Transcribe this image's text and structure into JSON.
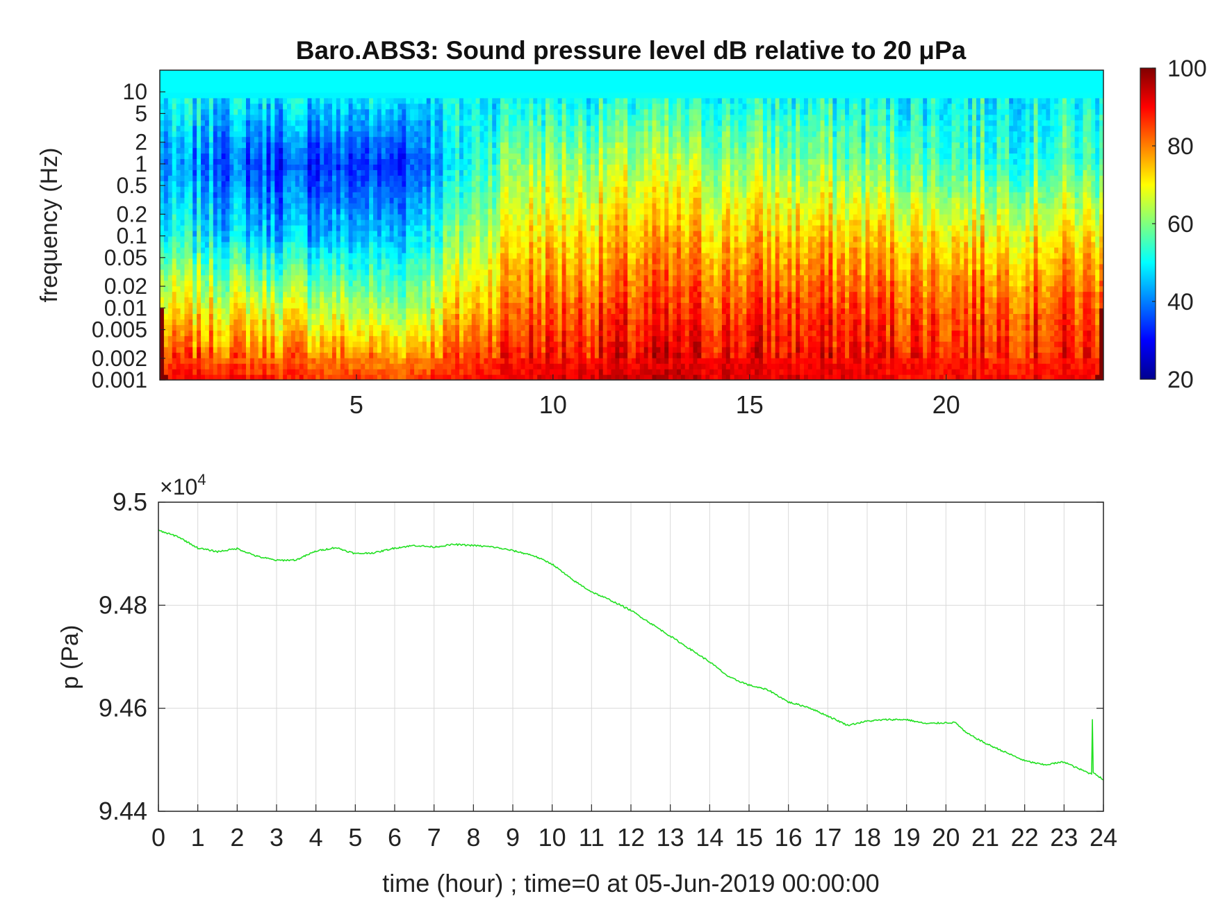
{
  "chart_data": [
    {
      "type": "heatmap",
      "title": "Baro.ABS3: Sound pressure level dB relative to 20 μPa",
      "ylabel": "frequency (Hz)",
      "xlabel": "",
      "xlim": [
        0,
        24
      ],
      "x_ticks": [
        5,
        10,
        15,
        20
      ],
      "y_scale": "log",
      "ylim": [
        0.001,
        20
      ],
      "y_ticks": [
        0.001,
        0.002,
        0.005,
        0.01,
        0.02,
        0.05,
        0.1,
        0.2,
        0.5,
        1,
        2,
        5,
        10
      ],
      "y_tick_labels": [
        "0.001",
        "0.002",
        "0.005",
        "0.01",
        "0.02",
        "0.05",
        "0.1",
        "0.2",
        "0.5",
        "1",
        "2",
        "5",
        "10"
      ],
      "colorbar": {
        "range": [
          20,
          100
        ],
        "ticks": [
          20,
          40,
          60,
          80,
          100
        ],
        "colormap": "jet"
      },
      "levels_by_hour": [
        {
          "hour": 1,
          "f_0_001": 90,
          "f_0_01": 70,
          "f_0_1": 50,
          "f_1": 40,
          "f_10": 50
        },
        {
          "hour": 3,
          "f_0_001": 88,
          "f_0_01": 68,
          "f_0_1": 45,
          "f_1": 35,
          "f_10": 50
        },
        {
          "hour": 6,
          "f_0_001": 85,
          "f_0_01": 62,
          "f_0_1": 45,
          "f_1": 33,
          "f_10": 50
        },
        {
          "hour": 9,
          "f_0_001": 92,
          "f_0_01": 82,
          "f_0_1": 72,
          "f_1": 62,
          "f_10": 50
        },
        {
          "hour": 13,
          "f_0_001": 94,
          "f_0_01": 85,
          "f_0_1": 75,
          "f_1": 64,
          "f_10": 50
        },
        {
          "hour": 17,
          "f_0_001": 92,
          "f_0_01": 85,
          "f_0_1": 74,
          "f_1": 60,
          "f_10": 50
        },
        {
          "hour": 21,
          "f_0_001": 90,
          "f_0_01": 84,
          "f_0_1": 72,
          "f_1": 55,
          "f_10": 50
        }
      ],
      "colors": {
        "low": "#00008f",
        "mid": "#7fff7f",
        "high": "#800000"
      }
    },
    {
      "type": "line",
      "title": "",
      "xlabel": "time (hour) ; time=0 at 05-Jun-2019 00:00:00",
      "ylabel": "p (Pa)",
      "xlim": [
        0,
        24
      ],
      "ylim": [
        94400,
        95000
      ],
      "x_ticks": [
        0,
        1,
        2,
        3,
        4,
        5,
        6,
        7,
        8,
        9,
        10,
        11,
        12,
        13,
        14,
        15,
        16,
        17,
        18,
        19,
        20,
        21,
        22,
        23,
        24
      ],
      "y_tick_labels": [
        "9.44",
        "9.46",
        "9.48",
        "9.5"
      ],
      "y_ticks": [
        94400,
        94600,
        94800,
        95000
      ],
      "y_exponent_label": "×10",
      "y_exponent_power": "4",
      "grid": true,
      "series": [
        {
          "color": "#22e022",
          "x": [
            0,
            0.5,
            1,
            1.5,
            2,
            2.5,
            3,
            3.5,
            4,
            4.5,
            5,
            5.5,
            6,
            6.5,
            7,
            7.5,
            8,
            8.5,
            9,
            9.5,
            10,
            10.5,
            11,
            11.5,
            12,
            12.5,
            13,
            13.5,
            14,
            14.5,
            15,
            15.5,
            16,
            16.5,
            17,
            17.5,
            18,
            18.5,
            19,
            19.5,
            20,
            20.25,
            20.5,
            21,
            21.5,
            22,
            22.5,
            23,
            23.3,
            23.7,
            23.72,
            23.74,
            24
          ],
          "y": [
            94945,
            94933,
            94911,
            94904,
            94910,
            94895,
            94887,
            94888,
            94905,
            94912,
            94900,
            94902,
            94911,
            94916,
            94913,
            94918,
            94916,
            94913,
            94906,
            94897,
            94880,
            94850,
            94826,
            94809,
            94790,
            94765,
            94740,
            94715,
            94690,
            94660,
            94645,
            94635,
            94612,
            94602,
            94585,
            94567,
            94575,
            94578,
            94578,
            94570,
            94572,
            94572,
            94553,
            94532,
            94515,
            94498,
            94490,
            94496,
            94485,
            94472,
            94578,
            94476,
            94461
          ]
        }
      ]
    }
  ]
}
